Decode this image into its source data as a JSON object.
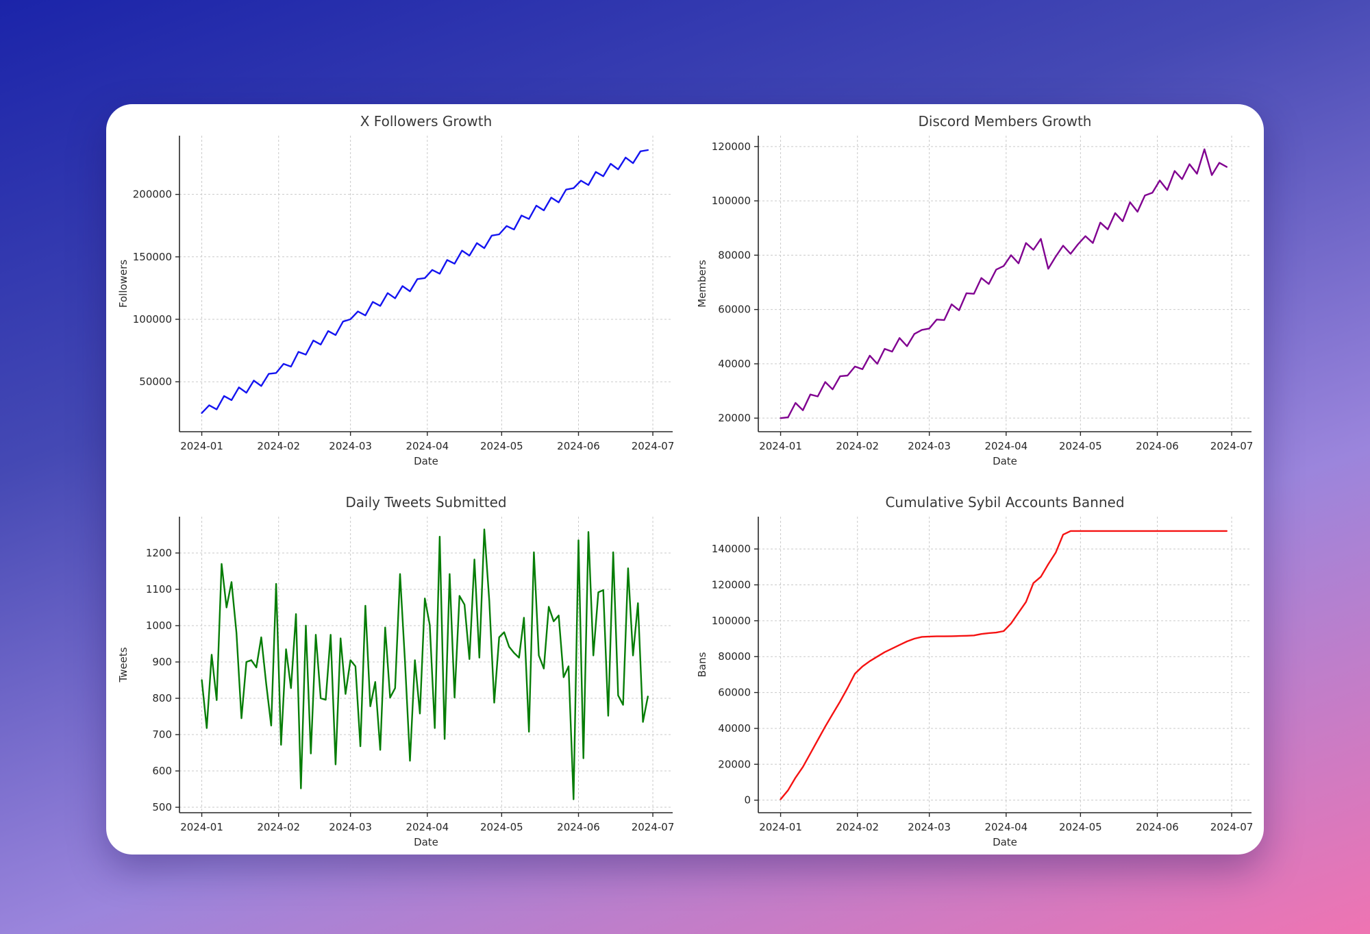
{
  "page": {
    "card_color": "#ffffff",
    "background_gradient": [
      "#1b24a9",
      "#4549b4",
      "#9b85dc",
      "#ef74b2"
    ],
    "grid_color": "#c9c9c9",
    "spine_color": "#262626"
  },
  "chart_data": [
    {
      "type": "line",
      "title": "X Followers Growth",
      "xlabel": "Date",
      "ylabel": "Followers",
      "line_color": "#1414f0",
      "grid": true,
      "x_tick_labels": [
        "2024-01",
        "2024-02",
        "2024-03",
        "2024-04",
        "2024-05",
        "2024-06",
        "2024-07"
      ],
      "x_tick_days": [
        0,
        31,
        60,
        91,
        121,
        152,
        182
      ],
      "xlim_days": [
        -9,
        190
      ],
      "ylim": [
        10000,
        247000
      ],
      "yticks": [
        50000,
        100000,
        150000,
        200000
      ],
      "x_start_day": 0,
      "x_step_days": 3,
      "values": [
        25000,
        31200,
        27900,
        38600,
        35300,
        45500,
        41200,
        50900,
        46600,
        56300,
        57000,
        64300,
        62100,
        73900,
        71700,
        83000,
        79800,
        90600,
        87400,
        98200,
        100000,
        106300,
        103100,
        113900,
        110700,
        121000,
        116800,
        126600,
        122400,
        132200,
        133000,
        139500,
        136500,
        147500,
        144500,
        155000,
        151000,
        161000,
        157000,
        167000,
        168000,
        174700,
        171900,
        183100,
        180300,
        191000,
        187200,
        197400,
        193600,
        203800,
        205000,
        211000,
        207500,
        218000,
        214500,
        224500,
        220000,
        229500,
        225000,
        234500,
        235500
      ]
    },
    {
      "type": "line",
      "title": "Discord Members Growth",
      "xlabel": "Date",
      "ylabel": "Members",
      "line_color": "#800090",
      "grid": true,
      "x_tick_labels": [
        "2024-01",
        "2024-02",
        "2024-03",
        "2024-04",
        "2024-05",
        "2024-06",
        "2024-07"
      ],
      "x_tick_days": [
        0,
        31,
        60,
        91,
        121,
        152,
        182
      ],
      "xlim_days": [
        -9,
        190
      ],
      "ylim": [
        15000,
        124000
      ],
      "yticks": [
        20000,
        40000,
        60000,
        80000,
        100000,
        120000
      ],
      "x_start_day": 0,
      "x_step_days": 3,
      "values": [
        20000,
        20300,
        25600,
        22900,
        28700,
        28000,
        33300,
        30600,
        35400,
        35700,
        39000,
        38000,
        43000,
        40000,
        45500,
        44500,
        49500,
        46500,
        51000,
        52500,
        53000,
        56300,
        56100,
        61900,
        59700,
        66000,
        65800,
        71600,
        69400,
        74700,
        76000,
        80000,
        77000,
        84500,
        82000,
        86000,
        75000,
        79500,
        83500,
        80500,
        84000,
        87000,
        84500,
        92000,
        89500,
        95500,
        92500,
        99500,
        96000,
        102000,
        103000,
        107500,
        104000,
        111000,
        108000,
        113500,
        110000,
        119000,
        109500,
        114000,
        112500
      ]
    },
    {
      "type": "line",
      "title": "Daily Tweets Submitted",
      "xlabel": "Date",
      "ylabel": "Tweets",
      "line_color": "#067d06",
      "grid": true,
      "x_tick_labels": [
        "2024-01",
        "2024-02",
        "2024-03",
        "2024-04",
        "2024-05",
        "2024-06",
        "2024-07"
      ],
      "x_tick_days": [
        0,
        31,
        60,
        91,
        121,
        152,
        182
      ],
      "xlim_days": [
        -9,
        190
      ],
      "ylim": [
        485,
        1300
      ],
      "yticks": [
        500,
        600,
        700,
        800,
        900,
        1000,
        1100,
        1200
      ],
      "x_start_day": 0,
      "x_step_days": 2,
      "values": [
        850,
        718,
        920,
        795,
        1170,
        1050,
        1120,
        980,
        745,
        900,
        905,
        885,
        968,
        840,
        725,
        1115,
        672,
        935,
        828,
        1032,
        552,
        1000,
        648,
        975,
        800,
        796,
        975,
        618,
        965,
        812,
        905,
        888,
        668,
        1055,
        778,
        845,
        658,
        995,
        802,
        828,
        1142,
        902,
        628,
        905,
        758,
        1075,
        1002,
        718,
        1245,
        688,
        1142,
        802,
        1082,
        1058,
        908,
        1182,
        912,
        1265,
        1068,
        788,
        968,
        982,
        942,
        925,
        912,
        1022,
        708,
        1202,
        918,
        882,
        1052,
        1012,
        1028,
        858,
        888,
        522,
        1235,
        635,
        1258,
        918,
        1092,
        1098,
        752,
        1202,
        808,
        782,
        1158,
        918,
        1062,
        735,
        805
      ]
    },
    {
      "type": "line",
      "title": "Cumulative Sybil Accounts Banned",
      "xlabel": "Date",
      "ylabel": "Bans",
      "line_color": "#f51212",
      "grid": true,
      "x_tick_labels": [
        "2024-01",
        "2024-02",
        "2024-03",
        "2024-04",
        "2024-05",
        "2024-06",
        "2024-07"
      ],
      "x_tick_days": [
        0,
        31,
        60,
        91,
        121,
        152,
        182
      ],
      "xlim_days": [
        -9,
        190
      ],
      "ylim": [
        -7000,
        158000
      ],
      "yticks": [
        0,
        20000,
        40000,
        60000,
        80000,
        100000,
        120000,
        140000
      ],
      "x_start_day": 0,
      "x_step_days": 3,
      "values": [
        500,
        5500,
        12500,
        18500,
        26000,
        33500,
        41000,
        48000,
        55000,
        62500,
        70500,
        74500,
        77500,
        80000,
        82500,
        84500,
        86500,
        88500,
        90000,
        91000,
        91200,
        91300,
        91300,
        91400,
        91500,
        91600,
        91800,
        92600,
        93100,
        93400,
        94200,
        98500,
        104500,
        110500,
        121000,
        124500,
        131500,
        138000,
        148000,
        150000,
        150000,
        150000,
        150000,
        150000,
        150000,
        150000,
        150000,
        150000,
        150000,
        150000,
        150000,
        150000,
        150000,
        150000,
        150000,
        150000,
        150000,
        150000,
        150000,
        150000,
        150000
      ]
    }
  ]
}
